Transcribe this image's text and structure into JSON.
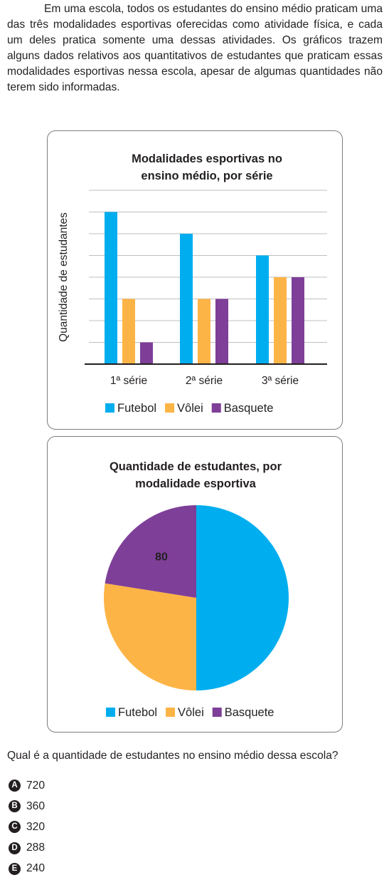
{
  "intro_text": "Em uma escola, todos os estudantes do ensino médio praticam uma das três modalidades esportivas oferecidas como atividade física, e cada um deles pratica somente uma dessas atividades. Os gráficos trazem alguns dados relativos aos quantitativos de estudantes que praticam essas modalidades esportivas nessa escola, apesar de algumas quantidades não terem sido informadas.",
  "colors": {
    "futebol": "#00aeef",
    "volei": "#fdb446",
    "basquete": "#7e3f98",
    "grid": "#bfbfbf",
    "axis": "#231f20"
  },
  "chart_data": [
    {
      "type": "bar",
      "title_lines": [
        "Modalidades esportivas no",
        "ensino médio, por série"
      ],
      "ylabel": "Quantidade de estudantes",
      "categories": [
        "1ª série",
        "2ª série",
        "3ª série"
      ],
      "series": [
        {
          "name": "Futebol",
          "values": [
            7,
            6,
            5
          ]
        },
        {
          "name": "Vôlei",
          "values": [
            3,
            3,
            4
          ]
        },
        {
          "name": "Basquete",
          "values": [
            1,
            3,
            4
          ]
        }
      ],
      "ylim": [
        0,
        8
      ],
      "y_ticks_labeled": false,
      "grid": true,
      "legend_position": "bottom"
    },
    {
      "type": "pie",
      "title_lines": [
        "Quantidade de estudantes, por",
        "modalidade esportiva"
      ],
      "slices": [
        {
          "name": "Futebol",
          "value": 50,
          "label": ""
        },
        {
          "name": "Vôlei",
          "value": 27.5,
          "label": ""
        },
        {
          "name": "Basquete",
          "value": 22.5,
          "label": "80"
        }
      ],
      "legend_position": "bottom"
    }
  ],
  "question": "Qual é a quantidade de estudantes no ensino médio dessa escola?",
  "options": [
    {
      "letter": "A",
      "text": "720"
    },
    {
      "letter": "B",
      "text": "360"
    },
    {
      "letter": "C",
      "text": "320"
    },
    {
      "letter": "D",
      "text": "288"
    },
    {
      "letter": "E",
      "text": "240"
    }
  ]
}
